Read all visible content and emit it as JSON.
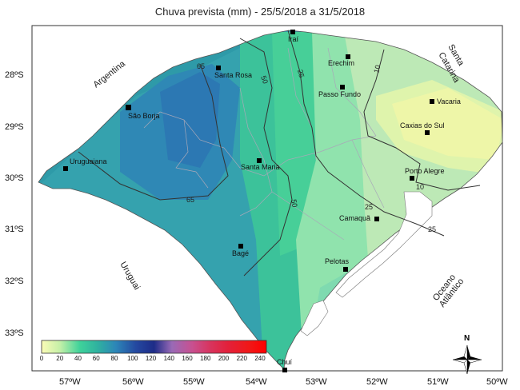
{
  "title": "Chuva prevista (mm) - 25/5/2018 a 31/5/2018",
  "axes": {
    "lon_ticks": [
      "57ºW",
      "56ºW",
      "55ºW",
      "54ºW",
      "53ºW",
      "52ºW",
      "51ºW",
      "50ºW"
    ],
    "lat_ticks": [
      "28ºS",
      "29ºS",
      "30ºS",
      "31ºS",
      "32ºS",
      "33ºS"
    ]
  },
  "regions": {
    "argentina": "Argentina",
    "santa_catarina_1": "Santa",
    "santa_catarina_2": "Catarina",
    "uruguai": "Uruguai",
    "oceano_1": "Oceano",
    "oceano_2": "Atlântico"
  },
  "cities": [
    {
      "name": "Iraí"
    },
    {
      "name": "Erechim"
    },
    {
      "name": "Santa Rosa"
    },
    {
      "name": "Passo Fundo"
    },
    {
      "name": "Vacaria"
    },
    {
      "name": "São Borja"
    },
    {
      "name": "Caxias do Sul"
    },
    {
      "name": "Uruguaiana"
    },
    {
      "name": "Santa Maria"
    },
    {
      "name": "Porto Alegre"
    },
    {
      "name": "Camaquã"
    },
    {
      "name": "Bagé"
    },
    {
      "name": "Pelotas"
    },
    {
      "name": "Chuí"
    }
  ],
  "isolines": {
    "v65a": "65",
    "v65b": "65",
    "v50a": "50",
    "v50b": "50",
    "v25a": "25",
    "v25b": "25",
    "v25c": "25",
    "v10a": "10",
    "v10b": "10"
  },
  "colorbar": {
    "ticks": [
      "0",
      "20",
      "40",
      "60",
      "80",
      "100",
      "120",
      "140",
      "160",
      "180",
      "200",
      "220",
      "240"
    ],
    "colors": [
      "#fbfbb6",
      "#c6f0a8",
      "#3fd29a",
      "#2fb1a0",
      "#2d86b8",
      "#2448a0",
      "#1d2c88",
      "#9a6ab6",
      "#c85090",
      "#d8345e",
      "#e3203a",
      "#f01818",
      "#ff0000"
    ]
  },
  "north_label": "N"
}
